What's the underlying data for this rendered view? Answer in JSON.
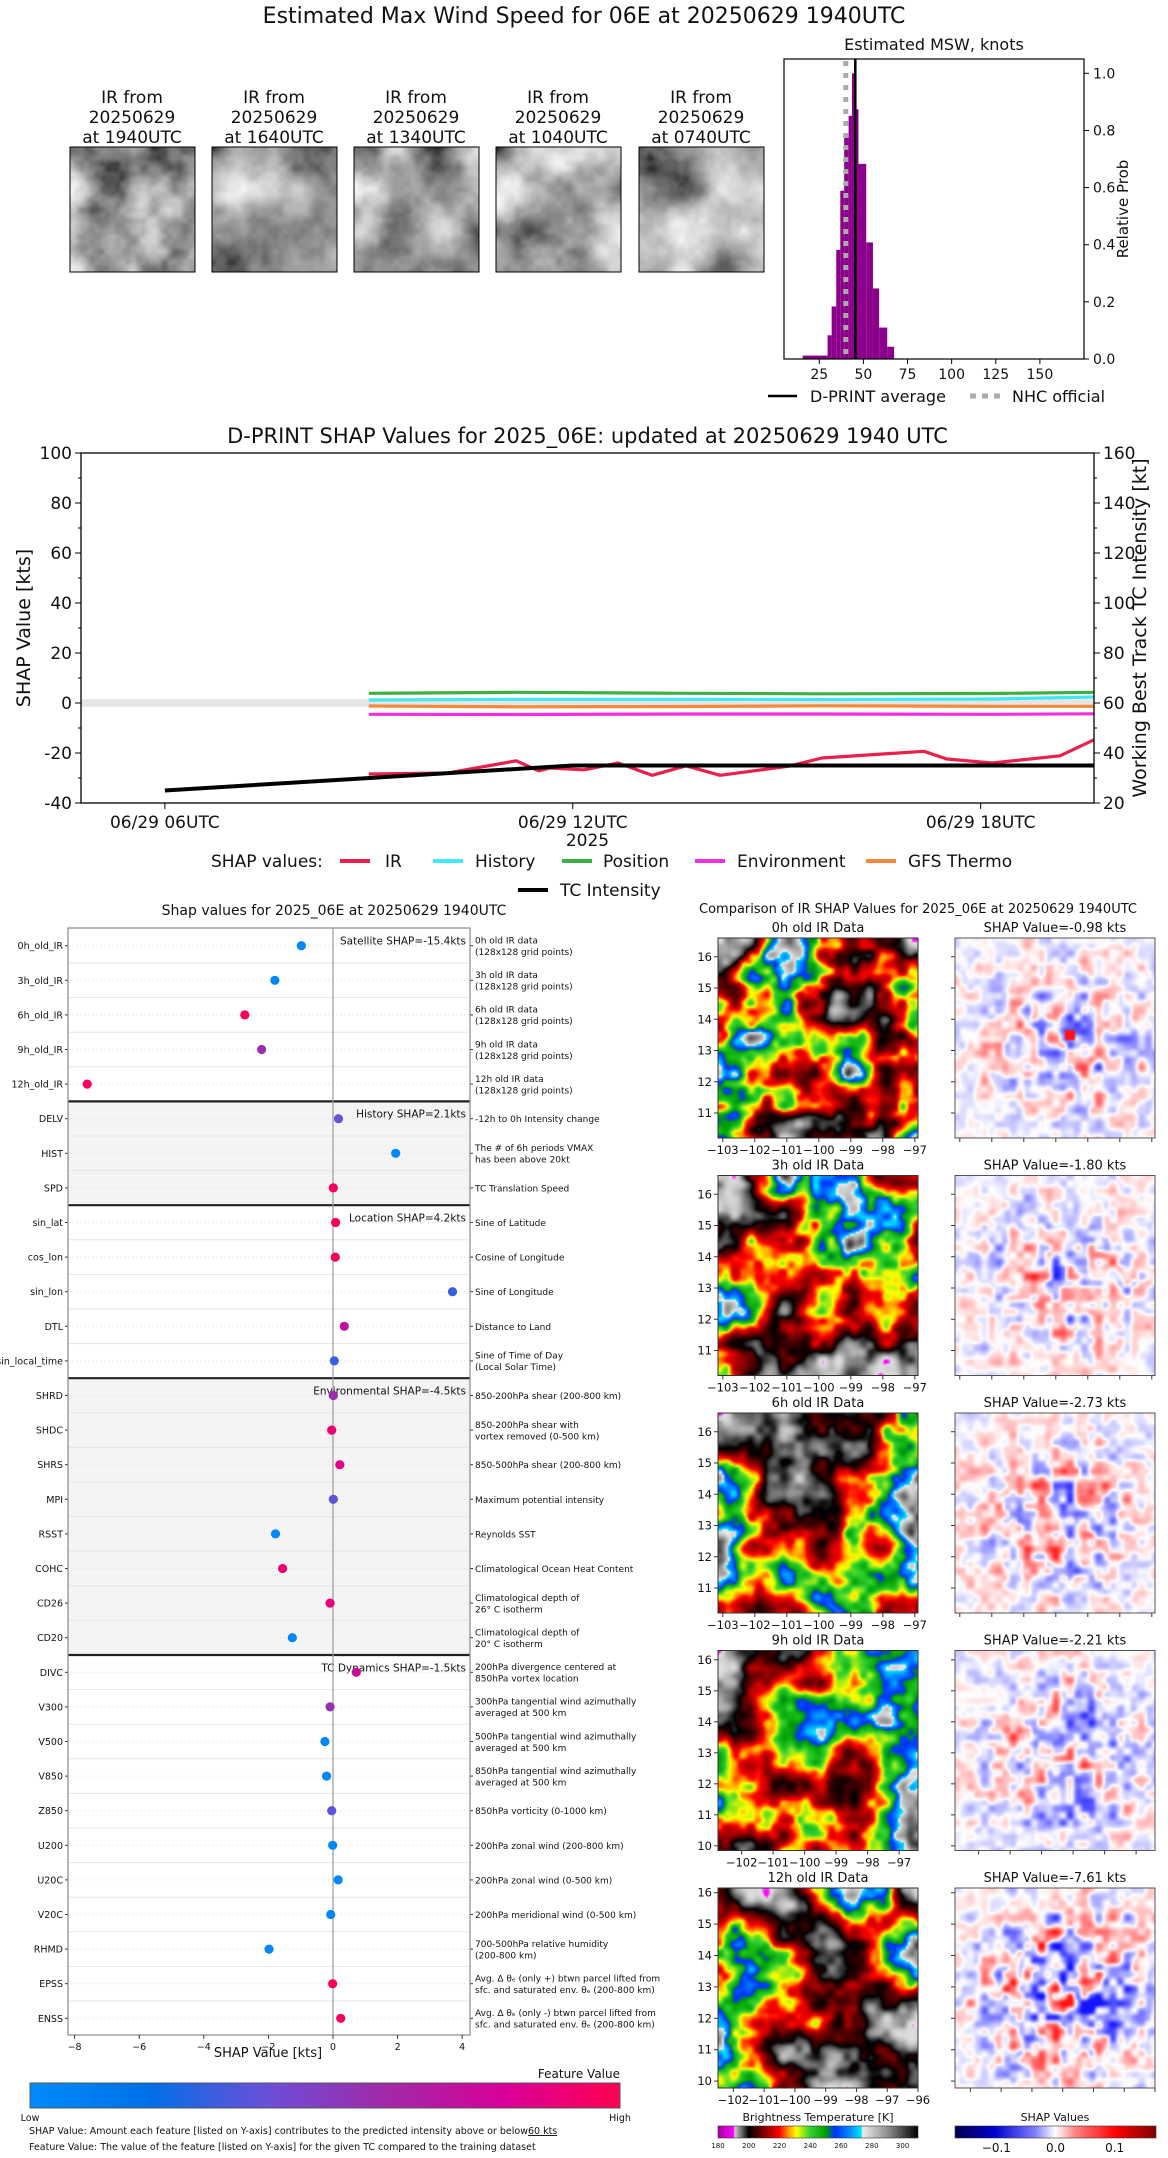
{
  "title": "Estimated Max Wind Speed for 06E at 20250629 1940UTC",
  "thumbnails": [
    {
      "line1": "IR from",
      "line2": "20250629",
      "line3": "at 1940UTC"
    },
    {
      "line1": "IR from",
      "line2": "20250629",
      "line3": "at 1640UTC"
    },
    {
      "line1": "IR from",
      "line2": "20250629",
      "line3": "at 1340UTC"
    },
    {
      "line1": "IR from",
      "line2": "20250629",
      "line3": "at 1040UTC"
    },
    {
      "line1": "IR from",
      "line2": "20250629",
      "line3": "at 0740UTC"
    }
  ],
  "chart_data": [
    {
      "type": "bar",
      "title": "Estimated MSW, knots",
      "xlabel": "",
      "ylabel": "Relative Prob",
      "xlim": [
        5,
        175
      ],
      "ylim": [
        0,
        1.05
      ],
      "x_ticks": [
        "25",
        "50",
        "75",
        "100",
        "125",
        "150"
      ],
      "y_ticks": [
        "0.0",
        "0.2",
        "0.4",
        "0.6",
        "0.8",
        "1.0"
      ],
      "bar_color": "#8b008b",
      "bin_edges": [
        15.6,
        29.7,
        32.0,
        34.6,
        36.9,
        39.1,
        41.6,
        43.5,
        45.9,
        47.2,
        51.6,
        55.4,
        58.9,
        63.5,
        67.4
      ],
      "values": [
        0.012,
        0.083,
        0.184,
        0.382,
        0.589,
        0.775,
        0.851,
        1.0,
        0.874,
        0.683,
        0.408,
        0.247,
        0.11,
        0.043
      ],
      "reference_lines": [
        {
          "name": "D-PRINT average",
          "x": 45.4,
          "color": "#000000",
          "style": "solid"
        },
        {
          "name": "NHC official",
          "x": 40,
          "color": "#aaaaaa",
          "style": "dotted"
        }
      ],
      "legend_position": "bottom"
    },
    {
      "type": "line",
      "title": "D-PRINT SHAP Values for 2025_06E: updated at 20250629 1940 UTC",
      "xlabel": "2025",
      "ylabel": "SHAP Value [kts]",
      "ylabel_right": "Working Best Track TC Intensity [kt]",
      "xlim": [
        "2025-06-29 04:46",
        "2025-06-29 19:40"
      ],
      "ylim": [
        -40,
        100
      ],
      "ylim_right": [
        20,
        160
      ],
      "x_ticks": [
        {
          "label": "06/29 06UTC",
          "time": "2025-06-29 06:00"
        },
        {
          "label": "06/29 12UTC",
          "time": "2025-06-29 12:00"
        },
        {
          "label": "06/29 18UTC",
          "time": "2025-06-29 18:00"
        }
      ],
      "y_ticks": [
        "-40",
        "-20",
        "0",
        "20",
        "40",
        "60",
        "80",
        "100"
      ],
      "y_ticks_right": [
        "20",
        "40",
        "60",
        "80",
        "100",
        "120",
        "140",
        "160"
      ],
      "zero_band": [
        -1.5,
        1.5
      ],
      "legend_title": "SHAP values:",
      "series": [
        {
          "name": "IR",
          "color": "#e8204a",
          "axis": "left",
          "points": [
            [
              "2025-06-29 09:00",
              -28.4
            ],
            [
              "2025-06-29 10:10",
              -28.0
            ],
            [
              "2025-06-29 11:10",
              -23.1
            ],
            [
              "2025-06-29 11:30",
              -27.1
            ],
            [
              "2025-06-29 11:40",
              -26.0
            ],
            [
              "2025-06-29 12:10",
              -26.7
            ],
            [
              "2025-06-29 12:40",
              -24.0
            ],
            [
              "2025-06-29 13:10",
              -28.9
            ],
            [
              "2025-06-29 13:40",
              -25.1
            ],
            [
              "2025-06-29 14:10",
              -28.9
            ],
            [
              "2025-06-29 15:10",
              -25.3
            ],
            [
              "2025-06-29 15:40",
              -22.0
            ],
            [
              "2025-06-29 17:10",
              -19.3
            ],
            [
              "2025-06-29 17:30",
              -22.4
            ],
            [
              "2025-06-29 18:10",
              -24.0
            ],
            [
              "2025-06-29 19:10",
              -21.1
            ],
            [
              "2025-06-29 19:40",
              -14.7
            ]
          ]
        },
        {
          "name": "History",
          "color": "#40e8f0",
          "axis": "left",
          "points": [
            [
              "2025-06-29 09:00",
              1.2
            ],
            [
              "2025-06-29 11:10",
              1.5
            ],
            [
              "2025-06-29 13:40",
              1.5
            ],
            [
              "2025-06-29 15:40",
              1.4
            ],
            [
              "2025-06-29 18:10",
              1.6
            ],
            [
              "2025-06-29 19:40",
              2.4
            ]
          ]
        },
        {
          "name": "Position",
          "color": "#3cb043",
          "axis": "left",
          "points": [
            [
              "2025-06-29 09:00",
              3.9
            ],
            [
              "2025-06-29 11:10",
              4.3
            ],
            [
              "2025-06-29 13:40",
              3.9
            ],
            [
              "2025-06-29 15:40",
              3.7
            ],
            [
              "2025-06-29 18:10",
              3.8
            ],
            [
              "2025-06-29 19:40",
              4.3
            ]
          ]
        },
        {
          "name": "Environment",
          "color": "#f030e0",
          "axis": "left",
          "points": [
            [
              "2025-06-29 09:00",
              -4.5
            ],
            [
              "2025-06-29 11:10",
              -4.6
            ],
            [
              "2025-06-29 13:40",
              -4.4
            ],
            [
              "2025-06-29 15:40",
              -4.4
            ],
            [
              "2025-06-29 18:10",
              -4.5
            ],
            [
              "2025-06-29 19:40",
              -4.3
            ]
          ]
        },
        {
          "name": "GFS Thermo",
          "color": "#f5883a",
          "axis": "left",
          "points": [
            [
              "2025-06-29 09:00",
              -1.2
            ],
            [
              "2025-06-29 11:10",
              -1.5
            ],
            [
              "2025-06-29 13:40",
              -1.4
            ],
            [
              "2025-06-29 15:40",
              -1.1
            ],
            [
              "2025-06-29 18:10",
              -1.3
            ],
            [
              "2025-06-29 19:40",
              -1.3
            ]
          ]
        },
        {
          "name": "TC Intensity",
          "color": "#000000",
          "axis": "right",
          "points": [
            [
              "2025-06-29 06:00",
              25
            ],
            [
              "2025-06-29 12:00",
              35
            ],
            [
              "2025-06-29 19:40",
              35
            ]
          ]
        }
      ],
      "grid": false,
      "legend_position": "bottom"
    },
    {
      "type": "scatter",
      "title": "Shap values for 2025_06E at 20250629 1940UTC",
      "xlabel": "SHAP Value [kts]",
      "xlim": [
        -8.2,
        4.25
      ],
      "x_ticks": [
        "−8",
        "−6",
        "−4",
        "−2",
        "0",
        "2",
        "4"
      ],
      "colorbar": {
        "title": "Feature Value",
        "low": "Low",
        "high": "High",
        "colors": [
          "#008bfb",
          "#0070e8",
          "#6a4fd8",
          "#a02aa8",
          "#d8009a",
          "#ff0052"
        ]
      },
      "groups": [
        {
          "id": "satellite",
          "label": "Satellite SHAP=-15.4kts",
          "shaded": false
        },
        {
          "id": "history",
          "label": "History SHAP=2.1kts",
          "shaded": true
        },
        {
          "id": "location",
          "label": "Location SHAP=4.2kts",
          "shaded": false
        },
        {
          "id": "environmental",
          "label": "Environmental SHAP=-4.5kts",
          "shaded": true
        },
        {
          "id": "dynamics",
          "label": "TC Dynamics SHAP=-1.5kts",
          "shaded": false
        }
      ],
      "features": [
        {
          "name": "0h_old_IR",
          "group": "satellite",
          "shap": -0.98,
          "feature_value": 0.02,
          "desc": [
            "0h old IR data",
            "(128x128 grid points)"
          ]
        },
        {
          "name": "3h_old_IR",
          "group": "satellite",
          "shap": -1.8,
          "feature_value": 0.02,
          "desc": [
            "3h old IR data",
            "(128x128 grid points)"
          ]
        },
        {
          "name": "6h_old_IR",
          "group": "satellite",
          "shap": -2.73,
          "feature_value": 0.97,
          "desc": [
            "6h old IR data",
            "(128x128 grid points)"
          ]
        },
        {
          "name": "9h_old_IR",
          "group": "satellite",
          "shap": -2.21,
          "feature_value": 0.58,
          "desc": [
            "9h old IR data",
            "(128x128 grid points)"
          ]
        },
        {
          "name": "12h_old_IR",
          "group": "satellite",
          "shap": -7.61,
          "feature_value": 0.97,
          "desc": [
            "12h old IR data",
            "(128x128 grid points)"
          ]
        },
        {
          "name": "DELV",
          "group": "history",
          "shap": 0.17,
          "feature_value": 0.4,
          "desc": [
            "-12h to 0h Intensity change"
          ]
        },
        {
          "name": "HIST",
          "group": "history",
          "shap": 1.94,
          "feature_value": 0.02,
          "desc": [
            "The # of 6h periods VMAX",
            "has been above 20kt"
          ]
        },
        {
          "name": "SPD",
          "group": "history",
          "shap": 0.01,
          "feature_value": 0.97,
          "desc": [
            "TC Translation Speed"
          ]
        },
        {
          "name": "sin_lat",
          "group": "location",
          "shap": 0.08,
          "feature_value": 0.97,
          "desc": [
            "Sine of Latitude"
          ]
        },
        {
          "name": "cos_lon",
          "group": "location",
          "shap": 0.07,
          "feature_value": 0.97,
          "desc": [
            "Cosine of Longitude"
          ]
        },
        {
          "name": "sin_lon",
          "group": "location",
          "shap": 3.7,
          "feature_value": 0.3,
          "desc": [
            "Sine of Longitude"
          ]
        },
        {
          "name": "DTL",
          "group": "location",
          "shap": 0.35,
          "feature_value": 0.72,
          "desc": [
            "Distance to Land"
          ]
        },
        {
          "name": "sin_local_time",
          "group": "location",
          "shap": 0.04,
          "feature_value": 0.3,
          "desc": [
            "Sine of Time of Day",
            "(Local Solar Time)"
          ]
        },
        {
          "name": "SHRD",
          "group": "environmental",
          "shap": 0.01,
          "feature_value": 0.58,
          "desc": [
            "850-200hPa shear (200-800 km)"
          ]
        },
        {
          "name": "SHDC",
          "group": "environmental",
          "shap": -0.04,
          "feature_value": 0.92,
          "desc": [
            "850-200hPa shear with",
            "vortex removed (0-500 km)"
          ]
        },
        {
          "name": "SHRS",
          "group": "environmental",
          "shap": 0.21,
          "feature_value": 0.85,
          "desc": [
            "850-500hPa shear (200-800 km)"
          ]
        },
        {
          "name": "MPI",
          "group": "environmental",
          "shap": 0.01,
          "feature_value": 0.38,
          "desc": [
            "Maximum potential intensity"
          ]
        },
        {
          "name": "RSST",
          "group": "environmental",
          "shap": -1.78,
          "feature_value": 0.02,
          "desc": [
            "Reynolds SST"
          ]
        },
        {
          "name": "COHC",
          "group": "environmental",
          "shap": -1.56,
          "feature_value": 0.92,
          "desc": [
            "Climatological Ocean Heat Content"
          ]
        },
        {
          "name": "CD26",
          "group": "environmental",
          "shap": -0.09,
          "feature_value": 0.88,
          "desc": [
            "Climatological depth of",
            "26° C isotherm"
          ]
        },
        {
          "name": "CD20",
          "group": "environmental",
          "shap": -1.26,
          "feature_value": 0.02,
          "desc": [
            "Climatological depth of",
            "20° C isotherm"
          ]
        },
        {
          "name": "DIVC",
          "group": "dynamics",
          "shap": 0.72,
          "feature_value": 0.75,
          "desc": [
            "200hPa divergence centered at",
            "850hPa vortex location"
          ]
        },
        {
          "name": "V300",
          "group": "dynamics",
          "shap": -0.09,
          "feature_value": 0.55,
          "desc": [
            "300hPa tangential wind azimuthally",
            "averaged at 500 km"
          ]
        },
        {
          "name": "V500",
          "group": "dynamics",
          "shap": -0.25,
          "feature_value": 0.02,
          "desc": [
            "500hPa tangential wind azimuthally",
            "averaged at 500 km"
          ]
        },
        {
          "name": "V850",
          "group": "dynamics",
          "shap": -0.2,
          "feature_value": 0.02,
          "desc": [
            "850hPa tangential wind azimuthally",
            "averaged at 500 km"
          ]
        },
        {
          "name": "Z850",
          "group": "dynamics",
          "shap": -0.04,
          "feature_value": 0.38,
          "desc": [
            "850hPa vorticity (0-1000 km)"
          ]
        },
        {
          "name": "U200",
          "group": "dynamics",
          "shap": -0.01,
          "feature_value": 0.02,
          "desc": [
            "200hPa zonal wind (200-800 km)"
          ]
        },
        {
          "name": "U20C",
          "group": "dynamics",
          "shap": 0.16,
          "feature_value": 0.02,
          "desc": [
            "200hPa zonal wind (0-500 km)"
          ]
        },
        {
          "name": "V20C",
          "group": "dynamics",
          "shap": -0.07,
          "feature_value": 0.02,
          "desc": [
            "200hPa meridional wind (0-500 km)"
          ]
        },
        {
          "name": "RHMD",
          "group": "dynamics",
          "shap": -1.98,
          "feature_value": 0.02,
          "desc": [
            "700-500hPa relative humidity",
            "(200-800 km)"
          ]
        },
        {
          "name": "EPSS",
          "group": "dynamics",
          "shap": -0.01,
          "feature_value": 0.97,
          "desc": [
            "Avg. Δ θₑ (only +) btwn parcel lifted from",
            "sfc. and saturated env. θₑ (200-800 km)"
          ]
        },
        {
          "name": "ENSS",
          "group": "dynamics",
          "shap": 0.24,
          "feature_value": 0.97,
          "desc": [
            "Avg. Δ θₑ (only -) btwn parcel lifted from",
            "sfc. and saturated env. θₑ (200-800 km)"
          ]
        }
      ]
    }
  ],
  "legend": {
    "avg_label": "D-PRINT average",
    "nhc_label": "NHC official"
  },
  "footer": {
    "line1_prefix": "SHAP Value: Amount each feature [listed on Y-axis] contributes to the predicted intensity above or below ",
    "line1_value": "60 kts",
    "line2": "Feature Value: The value of the feature [listed on Y-axis] for the given TC compared to the training dataset"
  },
  "ir_comparison": {
    "title": "Comparison of IR SHAP Values for 2025_06E at 20250629 1940UTC",
    "panels": [
      {
        "ir_title": "0h old IR Data",
        "shap_title": "SHAP Value=-0.98 kts",
        "xlim": [
          -103.15,
          -96.9
        ],
        "ylim": [
          10.2,
          16.6
        ],
        "x_ticks": [
          "−103",
          "−102",
          "−101",
          "−100",
          "−99",
          "−98",
          "−97"
        ],
        "y_ticks": [
          "11",
          "12",
          "13",
          "14",
          "15",
          "16"
        ]
      },
      {
        "ir_title": "3h old IR Data",
        "shap_title": "SHAP Value=-1.80 kts",
        "xlim": [
          -103.15,
          -96.9
        ],
        "ylim": [
          10.2,
          16.6
        ],
        "x_ticks": [
          "−103",
          "−102",
          "−101",
          "−100",
          "−99",
          "−98",
          "−97"
        ],
        "y_ticks": [
          "11",
          "12",
          "13",
          "14",
          "15",
          "16"
        ]
      },
      {
        "ir_title": "6h old IR Data",
        "shap_title": "SHAP Value=-2.73 kts",
        "xlim": [
          -103.15,
          -96.9
        ],
        "ylim": [
          10.2,
          16.6
        ],
        "x_ticks": [
          "−103",
          "−102",
          "−101",
          "−100",
          "−99",
          "−98",
          "−97"
        ],
        "y_ticks": [
          "11",
          "12",
          "13",
          "14",
          "15",
          "16"
        ]
      },
      {
        "ir_title": "9h old IR Data",
        "shap_title": "SHAP Value=-2.21 kts",
        "xlim": [
          -102.75,
          -96.4
        ],
        "ylim": [
          9.85,
          16.3
        ],
        "x_ticks": [
          "−102",
          "−101",
          "−100",
          "−99",
          "−98",
          "−97"
        ],
        "y_ticks": [
          "10",
          "11",
          "12",
          "13",
          "14",
          "15",
          "16"
        ]
      },
      {
        "ir_title": "12h old IR Data",
        "shap_title": "SHAP Value=-7.61 kts",
        "xlim": [
          -102.5,
          -96.0
        ],
        "ylim": [
          9.78,
          16.15
        ],
        "x_ticks": [
          "−102",
          "−101",
          "−100",
          "−99",
          "−98",
          "−97",
          "−96"
        ],
        "y_ticks": [
          "10",
          "11",
          "12",
          "13",
          "14",
          "15",
          "16"
        ]
      }
    ],
    "bt_colorbar": {
      "title": "Brightness Temperature [K]",
      "range": [
        180,
        310
      ],
      "ticks": [
        "180",
        "200",
        "220",
        "240",
        "260",
        "280",
        "300"
      ]
    },
    "shap_colorbar": {
      "title": "SHAP Values",
      "range": [
        -0.17,
        0.17
      ],
      "ticks": [
        "−0.1",
        "0.0",
        "0.1"
      ]
    }
  }
}
